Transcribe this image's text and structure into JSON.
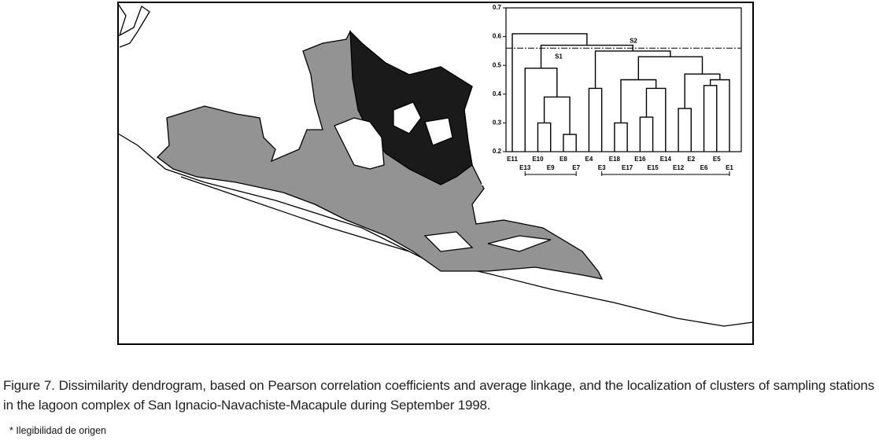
{
  "chart_data": {
    "type": "dendrogram",
    "ylim": [
      0.2,
      0.7
    ],
    "yticks": [
      0.2,
      0.3,
      0.4,
      0.5,
      0.6,
      0.7
    ],
    "cut": 0.56,
    "annotations": [
      "S1",
      "S2"
    ],
    "tree": {
      "height": 0.61,
      "children": [
        {
          "leaf": "E11"
        },
        {
          "height": 0.57,
          "children": [
            {
              "height": 0.49,
              "children": [
                {
                  "leaf": "E13"
                },
                {
                  "height": 0.39,
                  "children": [
                    {
                      "height": 0.3,
                      "children": [
                        {
                          "leaf": "E10"
                        },
                        {
                          "leaf": "E9"
                        }
                      ]
                    },
                    {
                      "height": 0.26,
                      "children": [
                        {
                          "leaf": "E8"
                        },
                        {
                          "leaf": "E7"
                        }
                      ]
                    }
                  ]
                }
              ]
            },
            {
              "height": 0.55,
              "children": [
                {
                  "height": 0.42,
                  "children": [
                    {
                      "leaf": "E4"
                    },
                    {
                      "leaf": "E3"
                    }
                  ]
                },
                {
                  "height": 0.53,
                  "children": [
                    {
                      "height": 0.45,
                      "children": [
                        {
                          "height": 0.3,
                          "children": [
                            {
                              "leaf": "E18"
                            },
                            {
                              "leaf": "E17"
                            }
                          ]
                        },
                        {
                          "height": 0.42,
                          "children": [
                            {
                              "height": 0.32,
                              "children": [
                                {
                                  "leaf": "E16"
                                },
                                {
                                  "leaf": "E15"
                                }
                              ]
                            },
                            {
                              "leaf": "E14"
                            }
                          ]
                        }
                      ]
                    },
                    {
                      "height": 0.47,
                      "children": [
                        {
                          "height": 0.35,
                          "children": [
                            {
                              "leaf": "E12"
                            },
                            {
                              "leaf": "E2"
                            }
                          ]
                        },
                        {
                          "height": 0.45,
                          "children": [
                            {
                              "height": 0.43,
                              "children": [
                                {
                                  "leaf": "E6"
                                },
                                {
                                  "leaf": "E5"
                                }
                              ]
                            },
                            {
                              "leaf": "E1"
                            }
                          ]
                        }
                      ]
                    }
                  ]
                }
              ]
            }
          ]
        }
      ]
    }
  },
  "caption": "Figure 7. Dissimilarity dendrogram, based on Pearson correlation coefficients and average linkage, and the localization of clusters of sampling stations in the lagoon complex of San Ignacio-Navachiste-Macapule during September 1998.",
  "footnote": "* Ilegibilidad de origen"
}
